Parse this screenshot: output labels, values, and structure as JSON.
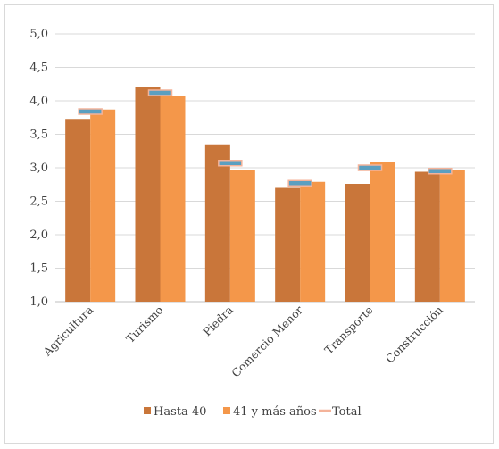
{
  "chart_data": {
    "type": "bar",
    "categories": [
      "Agricultura",
      "Turismo",
      "Piedra",
      "Comercio Menor",
      "Transporte",
      "Construcción"
    ],
    "series": [
      {
        "name": "Hasta 40",
        "values": [
          3.73,
          4.21,
          3.35,
          2.7,
          2.76,
          2.94
        ],
        "color": "#c9763a"
      },
      {
        "name": "41 y más años",
        "values": [
          3.87,
          4.08,
          2.97,
          2.79,
          3.08,
          2.96
        ],
        "color": "#f4974a"
      }
    ],
    "total": {
      "name": "Total",
      "values": [
        3.84,
        4.12,
        3.07,
        2.77,
        3.0,
        2.95
      ],
      "color": "#5b9fc0",
      "border": "#f4b39a"
    },
    "ylim": [
      1.0,
      5.0
    ],
    "yticks": [
      "1,0",
      "1,5",
      "2,0",
      "2,5",
      "3,0",
      "3,5",
      "4,0",
      "4,5",
      "5,0"
    ],
    "ytick_values": [
      1.0,
      1.5,
      2.0,
      2.5,
      3.0,
      3.5,
      4.0,
      4.5,
      5.0
    ],
    "grid": true,
    "legend_position": "bottom",
    "title": "",
    "xlabel": "",
    "ylabel": ""
  }
}
